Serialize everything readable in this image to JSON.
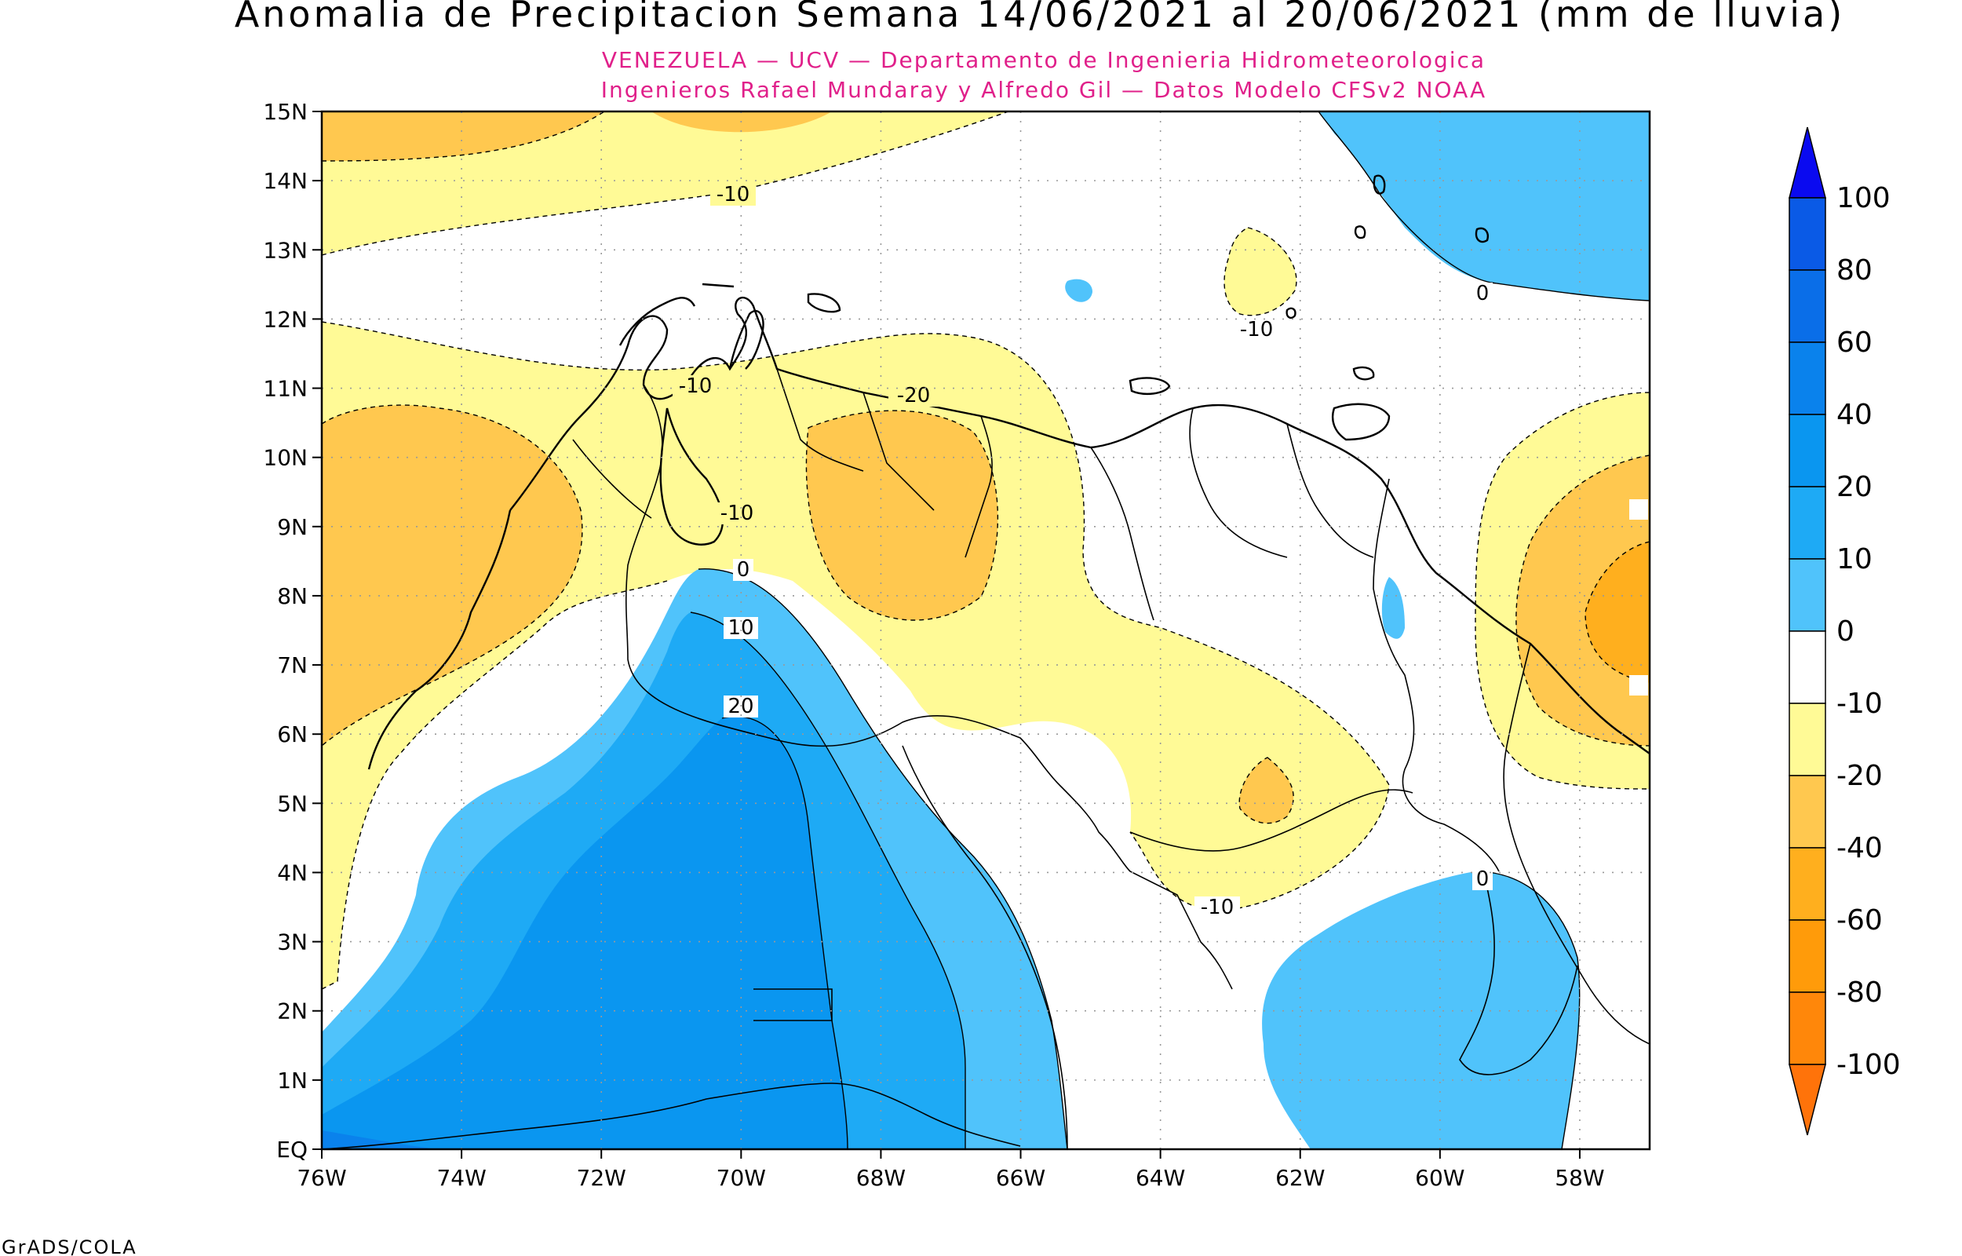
{
  "title": "Anomalia de Precipitacion Semana 14/06/2021 al 20/06/2021 (mm de lluvia)",
  "subtitle_1": "VENEZUELA — UCV — Departamento de Ingenieria Hidrometeorologica",
  "subtitle_2": "Ingenieros Rafael Mundaray y Alfredo Gil — Datos Modelo CFSv2 NOAA",
  "credit": "GrADS/COLA",
  "map": {
    "lon_range": [
      -76,
      -57
    ],
    "lat_range": [
      0,
      15
    ],
    "lat_ticks": [
      "15N",
      "14N",
      "13N",
      "12N",
      "11N",
      "10N",
      "9N",
      "8N",
      "7N",
      "6N",
      "5N",
      "4N",
      "3N",
      "2N",
      "1N",
      "EQ"
    ],
    "lon_ticks": [
      "76W",
      "74W",
      "72W",
      "70W",
      "68W",
      "66W",
      "64W",
      "62W",
      "60W",
      "58W"
    ],
    "contour_labels": [
      "-10",
      "-10",
      "-10",
      "-10",
      "-20",
      "-10",
      "0",
      "10",
      "20",
      "0",
      "0",
      "-10"
    ]
  },
  "colorbar": {
    "labels": [
      "100",
      "80",
      "60",
      "40",
      "20",
      "10",
      "0",
      "-10",
      "-20",
      "-40",
      "-60",
      "-80",
      "-100"
    ],
    "colors": [
      "#0a0af0",
      "#0a5ae6",
      "#0a6ee8",
      "#0a82ec",
      "#0a96f0",
      "#1eaaf5",
      "#50c3fb",
      "#ffffff",
      "#fffa96",
      "#ffc84f",
      "#ffaf1e",
      "#ff9b0a",
      "#ff870a",
      "#ff730a"
    ]
  }
}
